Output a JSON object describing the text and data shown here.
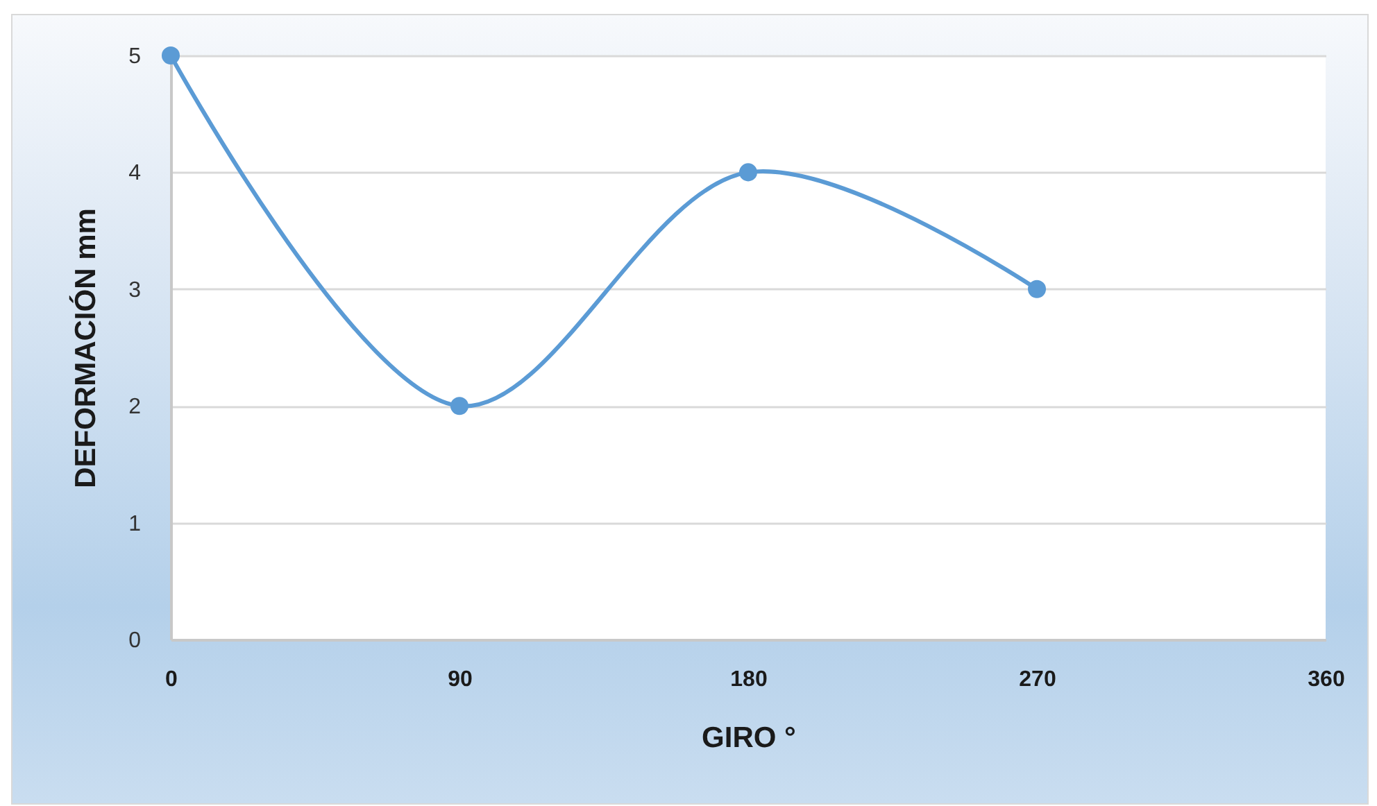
{
  "chart_data": {
    "type": "line",
    "xlabel": "GIRO °",
    "ylabel": "DEFORMACIÓN mm",
    "x": [
      0,
      90,
      180,
      270
    ],
    "series": [
      {
        "color": "#5b9bd5",
        "values": [
          5,
          2,
          4,
          3
        ]
      }
    ],
    "xlim": [
      0,
      360
    ],
    "xticks": [
      0,
      90,
      180,
      270,
      360
    ],
    "ylim": [
      0,
      5
    ],
    "yticks": [
      0,
      1,
      2,
      3,
      4,
      5
    ],
    "grid": "y",
    "marker": "circle",
    "line_style": "solid",
    "legend": false
  }
}
